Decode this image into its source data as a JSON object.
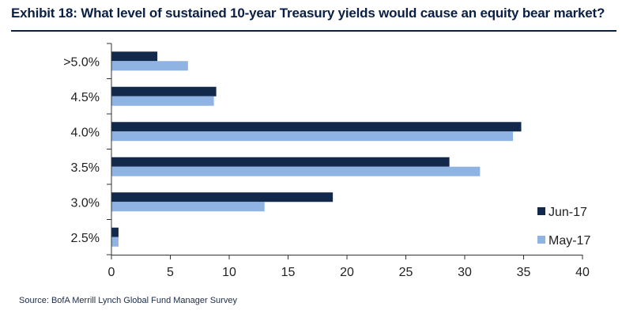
{
  "title": "Exhibit 18: What level of sustained 10-year Treasury yields would cause an equity bear market?",
  "source": "Source: BofA Merrill Lynch Global Fund Manager Survey",
  "colors": {
    "jun17": "#13294b",
    "may17": "#8fb3e3",
    "axis": "#333333",
    "title": "#0a1f44"
  },
  "chart_data": {
    "type": "bar",
    "orientation": "horizontal",
    "categories": [
      ">5.0%",
      "4.5%",
      "4.0%",
      "3.5%",
      "3.0%",
      "2.5%"
    ],
    "series": [
      {
        "name": "Jun-17",
        "values": [
          3.9,
          8.9,
          34.8,
          28.7,
          18.8,
          0.6
        ]
      },
      {
        "name": "May-17",
        "values": [
          6.5,
          8.7,
          34.1,
          31.3,
          13.0,
          0.6
        ]
      }
    ],
    "xlim": [
      0,
      40
    ],
    "xticks": [
      "0",
      "5",
      "10",
      "15",
      "20",
      "25",
      "30",
      "35",
      "40"
    ],
    "grid": false,
    "legend": "right"
  }
}
